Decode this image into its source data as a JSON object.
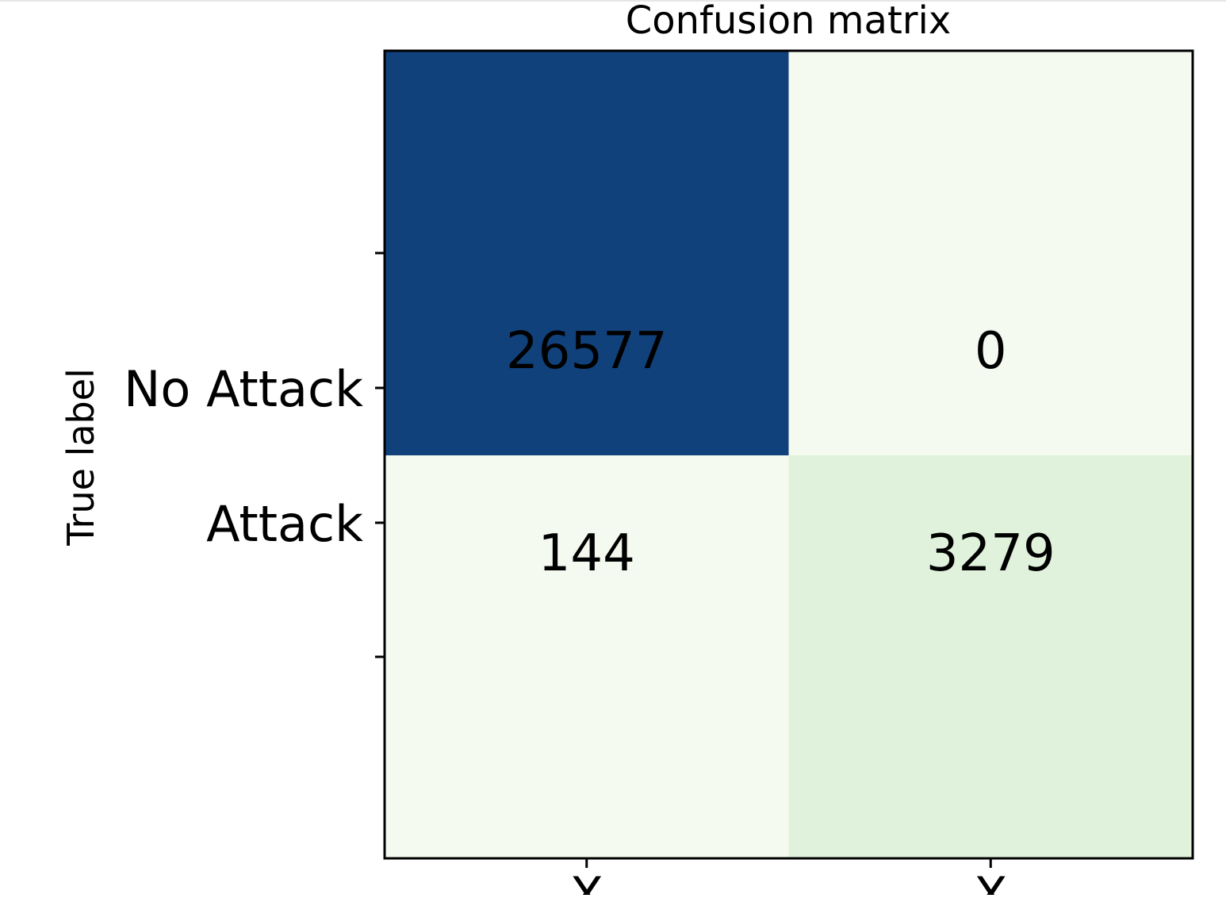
{
  "chart_data": {
    "type": "heatmap",
    "title": "Confusion matrix",
    "ylabel": "True label",
    "xlabel": "",
    "row_labels": [
      "No Attack",
      "Attack"
    ],
    "col_tick_labels": [
      "X",
      "X"
    ],
    "values": [
      [
        26577,
        0
      ],
      [
        144,
        3279
      ]
    ],
    "colormap": "Greens-Blues",
    "colors": {
      "max": "#10417b",
      "min": "#f4faf0",
      "mid_low": "#e0f2dc",
      "text": "#000000",
      "frame": "#000000"
    },
    "grid": false
  }
}
